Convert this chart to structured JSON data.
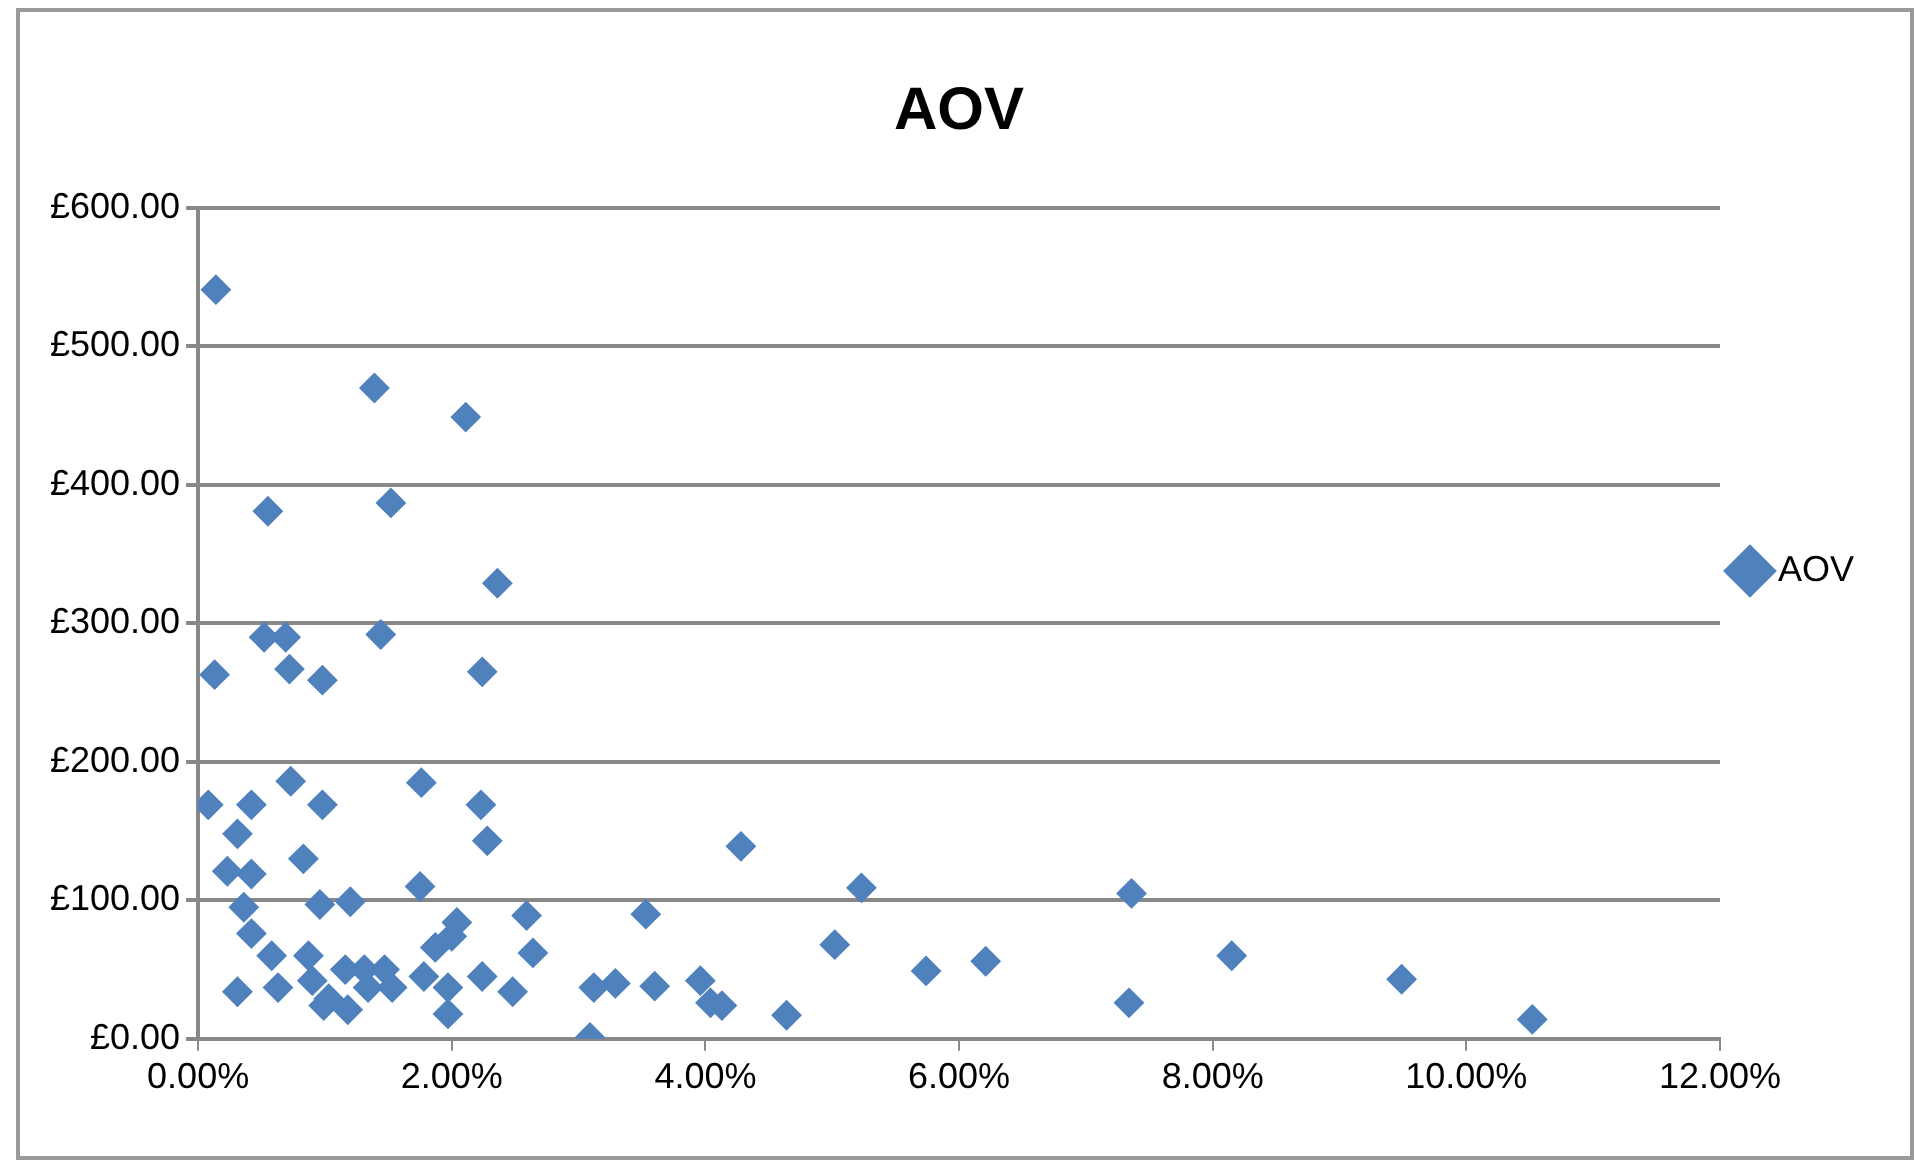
{
  "chart_data": {
    "type": "scatter",
    "title": "AOV",
    "marker": "diamond",
    "grid": "y",
    "legend": "right",
    "xlim": [
      0,
      12
    ],
    "xticks": [
      {
        "value": 0,
        "label": "0.00%"
      },
      {
        "value": 2,
        "label": "2.00%"
      },
      {
        "value": 4,
        "label": "4.00%"
      },
      {
        "value": 6,
        "label": "6.00%"
      },
      {
        "value": 8,
        "label": "8.00%"
      },
      {
        "value": 10,
        "label": "10.00%"
      },
      {
        "value": 12,
        "label": "12.00%"
      }
    ],
    "ylim": [
      0,
      600
    ],
    "yticks": [
      {
        "value": 0,
        "label": "£0.00"
      },
      {
        "value": 100,
        "label": "£100.00"
      },
      {
        "value": 200,
        "label": "£200.00"
      },
      {
        "value": 300,
        "label": "£300.00"
      },
      {
        "value": 400,
        "label": "£400.00"
      },
      {
        "value": 500,
        "label": "£500.00"
      },
      {
        "value": 600,
        "label": "£600.00"
      }
    ],
    "series": [
      {
        "name": "AOV",
        "color": "#4f81bd",
        "x": [
          0.14,
          1.39,
          2.11,
          0.55,
          1.52,
          2.36,
          0.52,
          0.69,
          1.44,
          0.13,
          0.72,
          0.98,
          2.24,
          0.73,
          1.76,
          0.08,
          0.42,
          0.98,
          2.23,
          0.31,
          2.28,
          0.83,
          0.23,
          0.42,
          0.36,
          0.96,
          1.2,
          1.75,
          2.04,
          2.59,
          2.64,
          0.42,
          0.58,
          0.87,
          1.16,
          1.31,
          1.47,
          1.87,
          2.0,
          0.31,
          0.63,
          0.9,
          1.03,
          1.18,
          1.34,
          1.53,
          1.78,
          1.97,
          1.97,
          2.24,
          2.48,
          0.99,
          3.09,
          3.12,
          3.29,
          3.6,
          3.53,
          3.96,
          4.04,
          4.13,
          4.28,
          4.64,
          5.02,
          5.23,
          5.74,
          6.21,
          7.36,
          7.34,
          8.15,
          9.49,
          10.52
        ],
        "values": [
          541,
          470,
          449,
          381,
          387,
          329,
          290,
          290,
          292,
          263,
          267,
          259,
          265,
          186,
          185,
          169,
          169,
          169,
          169,
          148,
          143,
          130,
          121,
          119,
          95,
          97,
          99,
          110,
          84,
          89,
          62,
          76,
          60,
          60,
          50,
          50,
          50,
          66,
          74,
          34,
          37,
          42,
          29,
          21,
          37,
          37,
          45,
          18,
          37,
          45,
          34,
          24,
          1,
          37,
          40,
          38,
          90,
          42,
          26,
          24,
          139,
          17,
          68,
          109,
          49,
          56,
          105,
          26,
          60,
          43,
          14
        ]
      }
    ]
  }
}
